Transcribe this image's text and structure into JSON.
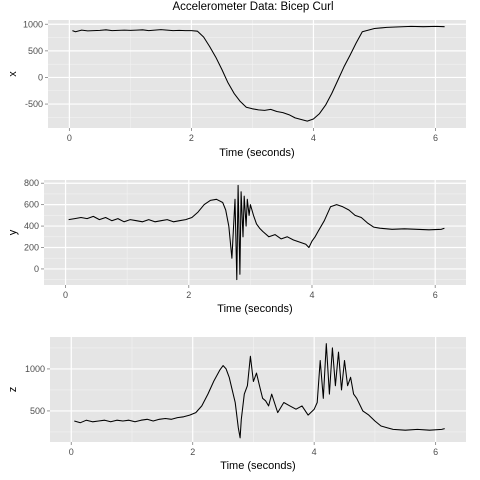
{
  "title": "Accelerometer Data: Bicep Curl",
  "chart_data": [
    {
      "type": "line",
      "title": "",
      "xlabel": "Time (seconds)",
      "ylabel": "x",
      "xlim": [
        -0.35,
        6.5
      ],
      "ylim": [
        -950,
        1080
      ],
      "xticks": [
        0,
        2,
        4,
        6
      ],
      "yticks": [
        -500,
        0,
        500,
        1000
      ],
      "grid": true,
      "series": [
        {
          "x": [
            0.05,
            0.1,
            0.2,
            0.3,
            0.4,
            0.5,
            0.6,
            0.7,
            0.8,
            0.9,
            1.0,
            1.1,
            1.2,
            1.3,
            1.4,
            1.5,
            1.6,
            1.7,
            1.8,
            1.9,
            2.0,
            2.1,
            2.2,
            2.3,
            2.4,
            2.5,
            2.6,
            2.7,
            2.8,
            2.9,
            3.0,
            3.1,
            3.2,
            3.3,
            3.4,
            3.5,
            3.6,
            3.7,
            3.8,
            3.9,
            4.0,
            4.1,
            4.2,
            4.3,
            4.4,
            4.5,
            4.6,
            4.7,
            4.8,
            5.0,
            5.2,
            5.4,
            5.6,
            5.8,
            6.0,
            6.15
          ],
          "y": [
            880,
            860,
            890,
            875,
            880,
            885,
            895,
            880,
            885,
            890,
            885,
            890,
            895,
            880,
            890,
            900,
            890,
            880,
            885,
            880,
            880,
            870,
            760,
            580,
            380,
            150,
            -100,
            -300,
            -450,
            -560,
            -590,
            -610,
            -620,
            -600,
            -640,
            -660,
            -700,
            -760,
            -790,
            -820,
            -780,
            -680,
            -520,
            -300,
            -50,
            200,
            420,
            650,
            860,
            920,
            940,
            950,
            960,
            955,
            960,
            955
          ]
        }
      ]
    },
    {
      "type": "line",
      "title": "",
      "xlabel": "Time (seconds)",
      "ylabel": "y",
      "xlim": [
        -0.35,
        6.5
      ],
      "ylim": [
        -150,
        830
      ],
      "xticks": [
        0,
        2,
        4,
        6
      ],
      "yticks": [
        0,
        200,
        400,
        600,
        800
      ],
      "grid": true,
      "series": [
        {
          "x": [
            0.05,
            0.15,
            0.25,
            0.35,
            0.45,
            0.55,
            0.65,
            0.75,
            0.85,
            0.95,
            1.05,
            1.15,
            1.25,
            1.35,
            1.45,
            1.55,
            1.65,
            1.75,
            1.85,
            1.95,
            2.05,
            2.15,
            2.25,
            2.35,
            2.45,
            2.55,
            2.6,
            2.65,
            2.7,
            2.75,
            2.78,
            2.8,
            2.83,
            2.85,
            2.88,
            2.9,
            2.93,
            2.95,
            2.98,
            3.0,
            3.05,
            3.1,
            3.15,
            3.2,
            3.3,
            3.4,
            3.5,
            3.6,
            3.7,
            3.8,
            3.9,
            3.95,
            4.0,
            4.05,
            4.1,
            4.2,
            4.3,
            4.4,
            4.5,
            4.6,
            4.7,
            4.8,
            4.9,
            5.0,
            5.1,
            5.3,
            5.5,
            5.7,
            5.9,
            6.1,
            6.15
          ],
          "y": [
            460,
            470,
            480,
            470,
            490,
            460,
            480,
            450,
            470,
            440,
            460,
            450,
            440,
            460,
            440,
            450,
            460,
            440,
            450,
            460,
            480,
            530,
            600,
            640,
            650,
            620,
            550,
            400,
            100,
            650,
            -100,
            780,
            -50,
            720,
            300,
            680,
            400,
            650,
            500,
            600,
            500,
            420,
            380,
            350,
            300,
            320,
            280,
            300,
            270,
            250,
            230,
            200,
            260,
            300,
            350,
            450,
            580,
            600,
            580,
            550,
            500,
            480,
            430,
            390,
            380,
            370,
            375,
            370,
            365,
            370,
            380
          ]
        }
      ]
    },
    {
      "type": "line",
      "title": "",
      "xlabel": "Time (seconds)",
      "ylabel": "z",
      "xlim": [
        -0.35,
        6.5
      ],
      "ylim": [
        130,
        1380
      ],
      "xticks": [
        0,
        2,
        4,
        6
      ],
      "yticks": [
        500,
        1000
      ],
      "grid": true,
      "series": [
        {
          "x": [
            0.05,
            0.15,
            0.25,
            0.35,
            0.45,
            0.55,
            0.65,
            0.75,
            0.85,
            0.95,
            1.05,
            1.15,
            1.25,
            1.35,
            1.45,
            1.55,
            1.65,
            1.75,
            1.85,
            1.95,
            2.05,
            2.15,
            2.25,
            2.35,
            2.45,
            2.5,
            2.55,
            2.6,
            2.65,
            2.7,
            2.75,
            2.78,
            2.8,
            2.85,
            2.9,
            2.95,
            3.0,
            3.05,
            3.1,
            3.15,
            3.2,
            3.25,
            3.3,
            3.4,
            3.5,
            3.6,
            3.7,
            3.8,
            3.9,
            4.0,
            4.05,
            4.1,
            4.15,
            4.2,
            4.25,
            4.3,
            4.35,
            4.4,
            4.45,
            4.5,
            4.55,
            4.6,
            4.65,
            4.7,
            4.8,
            4.9,
            5.0,
            5.1,
            5.2,
            5.3,
            5.5,
            5.7,
            5.9,
            6.1,
            6.15
          ],
          "y": [
            380,
            360,
            390,
            370,
            380,
            390,
            370,
            390,
            380,
            390,
            370,
            390,
            400,
            380,
            400,
            410,
            400,
            420,
            430,
            450,
            480,
            560,
            700,
            860,
            990,
            1040,
            1000,
            900,
            750,
            600,
            300,
            180,
            400,
            700,
            800,
            1150,
            850,
            950,
            800,
            650,
            620,
            560,
            700,
            480,
            600,
            560,
            520,
            560,
            450,
            520,
            600,
            1100,
            650,
            1300,
            700,
            1250,
            800,
            1200,
            750,
            1100,
            800,
            900,
            700,
            650,
            500,
            450,
            380,
            320,
            300,
            280,
            270,
            280,
            270,
            280,
            290
          ]
        }
      ]
    }
  ]
}
